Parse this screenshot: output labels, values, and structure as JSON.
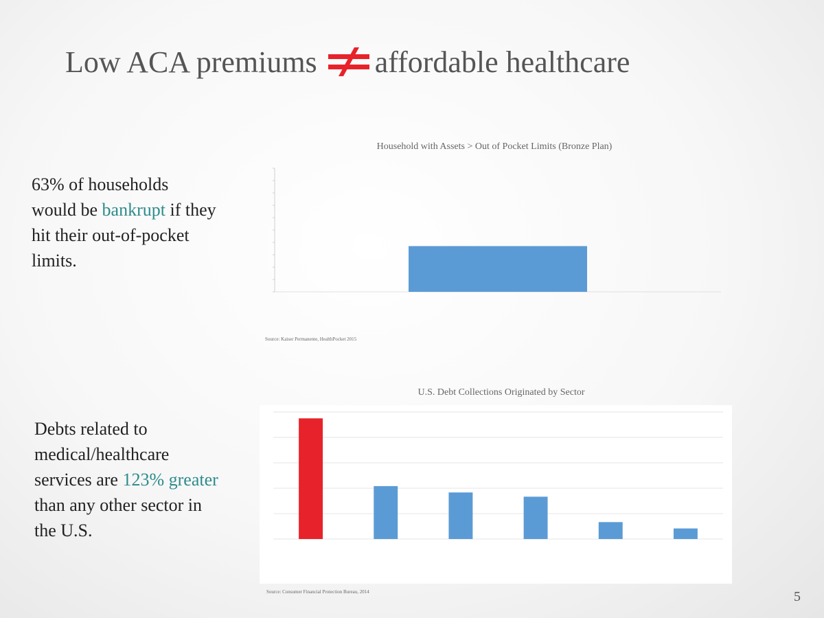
{
  "slide": {
    "title_left": "Low ACA premiums",
    "title_right": "affordable healthcare",
    "title_symbol": "not-equal-icon",
    "accent_color": "#e8222a",
    "page_number": "5"
  },
  "text_blocks": [
    {
      "parts": [
        {
          "text": "63% of households would be ",
          "highlight": false
        },
        {
          "text": "bankrupt",
          "highlight": true
        },
        {
          "text": " if they hit their out-of-pocket limits.",
          "highlight": false
        }
      ]
    },
    {
      "parts": [
        {
          "text": "Debts related to medical/healthcare services are ",
          "highlight": false
        },
        {
          "text": "123% greater",
          "highlight": true
        },
        {
          "text": " than any other sector in the U.S.",
          "highlight": false
        }
      ]
    }
  ],
  "chart_data": [
    {
      "type": "bar",
      "title": "Household with Assets > Out of Pocket Limits (Bronze Plan)",
      "categories": [
        ""
      ],
      "values": [
        37
      ],
      "ylim": [
        0,
        100
      ],
      "colors": [
        "#5b9bd5"
      ],
      "grid": false,
      "source": "Source: Kaiser Permanente, HealthPocket 2015"
    },
    {
      "type": "bar",
      "title": "U.S. Debt Collections Originated by Sector",
      "categories": [
        "",
        "",
        "",
        "",
        "",
        ""
      ],
      "values": [
        57,
        25,
        22,
        20,
        8,
        5
      ],
      "ylim": [
        0,
        60
      ],
      "colors": [
        "#e8222a",
        "#5b9bd5",
        "#5b9bd5",
        "#5b9bd5",
        "#5b9bd5",
        "#5b9bd5"
      ],
      "grid": true,
      "source": "Source: Consumer Financial Protection Bureau, 2014"
    }
  ]
}
